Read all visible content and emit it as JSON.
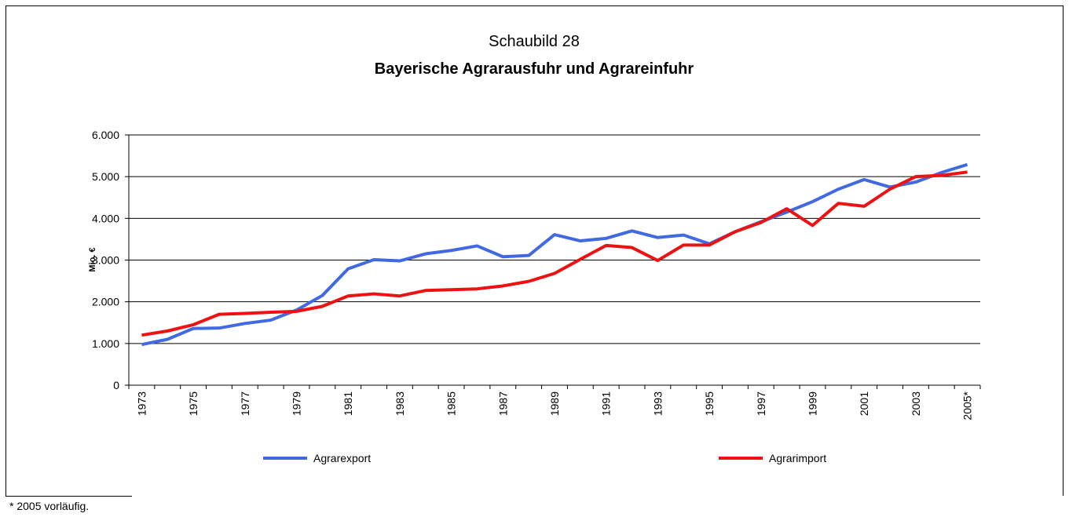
{
  "chart_data": {
    "type": "line",
    "title": "Schaubild 28",
    "subtitle": "Bayerische Agrarausfuhr und Agrareinfuhr",
    "y_label": "Mio. €",
    "footnote": "* 2005 vorläufig.",
    "categories": [
      "1973",
      null,
      "1975",
      null,
      "1977",
      null,
      "1979",
      null,
      "1981",
      null,
      "1983",
      null,
      "1985",
      null,
      "1987",
      null,
      "1989",
      null,
      "1991",
      null,
      "1993",
      null,
      "1995",
      null,
      "1997",
      null,
      "1999",
      null,
      "2001",
      null,
      "2003",
      null,
      "2005*"
    ],
    "series": [
      {
        "name": "Agrarexport",
        "color": "#4169e1",
        "values": [
          975,
          1100,
          1360,
          1370,
          1480,
          1560,
          1800,
          2150,
          2790,
          3010,
          2980,
          3150,
          3230,
          3340,
          3080,
          3110,
          3610,
          3460,
          3520,
          3700,
          3540,
          3600,
          3390,
          3680,
          3920,
          4150,
          4400,
          4700,
          4930,
          4750,
          4870,
          5100,
          5290
        ]
      },
      {
        "name": "Agrarimport",
        "color": "#ee1111",
        "values": [
          1200,
          1300,
          1450,
          1700,
          1720,
          1750,
          1770,
          1890,
          2140,
          2190,
          2140,
          2270,
          2290,
          2310,
          2380,
          2490,
          2680,
          3020,
          3350,
          3300,
          2990,
          3360,
          3360,
          3680,
          3900,
          4230,
          3830,
          4360,
          4290,
          4700,
          5000,
          5030,
          5110
        ]
      }
    ],
    "ylim": [
      0,
      6000
    ],
    "yticks": [
      0,
      {
        "value": 1000,
        "label": "1.000"
      },
      {
        "value": 2000,
        "label": "2.000"
      },
      {
        "value": 3000,
        "label": "3.000"
      },
      {
        "value": 4000,
        "label": "4.000"
      },
      {
        "value": 5000,
        "label": "5.000"
      },
      {
        "value": 6000,
        "label": "6.000"
      }
    ],
    "grid": true
  }
}
